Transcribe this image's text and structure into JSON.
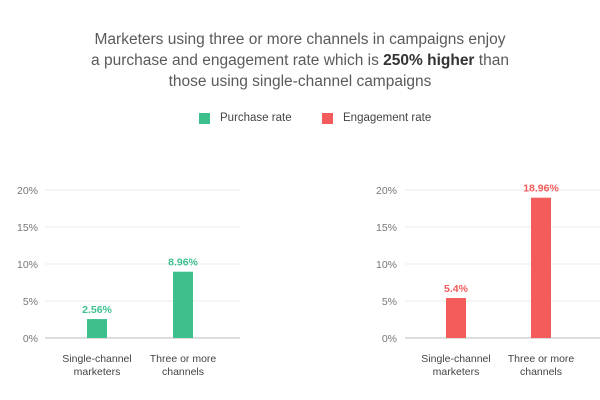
{
  "headline": {
    "line1": "Marketers using three or more channels in campaigns enjoy",
    "line2_prefix": "a purchase and engagement rate which is ",
    "line2_bold": "250% higher",
    "line2_suffix": " than",
    "line3": "those using single-channel campaigns"
  },
  "legend": [
    {
      "label": "Purchase rate",
      "color": "#3ec08d"
    },
    {
      "label": "Engagement rate",
      "color": "#f45b5b"
    }
  ],
  "chart_data": [
    {
      "type": "bar",
      "categories": [
        [
          "Single-channel",
          "marketers"
        ],
        [
          "Three or more",
          "channels"
        ]
      ],
      "values": [
        2.56,
        8.96
      ],
      "data_labels": [
        "2.56%",
        "8.96%"
      ],
      "ylim": [
        0,
        20
      ],
      "yticks": [
        0,
        5,
        10,
        15,
        20
      ],
      "ytick_labels": [
        "0%",
        "5%",
        "10%",
        "15%",
        "20%"
      ],
      "series_name": "Purchase rate",
      "color": "#3ec08d",
      "grid": true
    },
    {
      "type": "bar",
      "categories": [
        [
          "Single-channel",
          "marketers"
        ],
        [
          "Three or more",
          "channels"
        ]
      ],
      "values": [
        5.4,
        18.96
      ],
      "data_labels": [
        "5.4%",
        "18.96%"
      ],
      "ylim": [
        0,
        20
      ],
      "yticks": [
        0,
        5,
        10,
        15,
        20
      ],
      "ytick_labels": [
        "0%",
        "5%",
        "10%",
        "15%",
        "20%"
      ],
      "series_name": "Engagement rate",
      "color": "#f45b5b",
      "grid": true
    }
  ]
}
